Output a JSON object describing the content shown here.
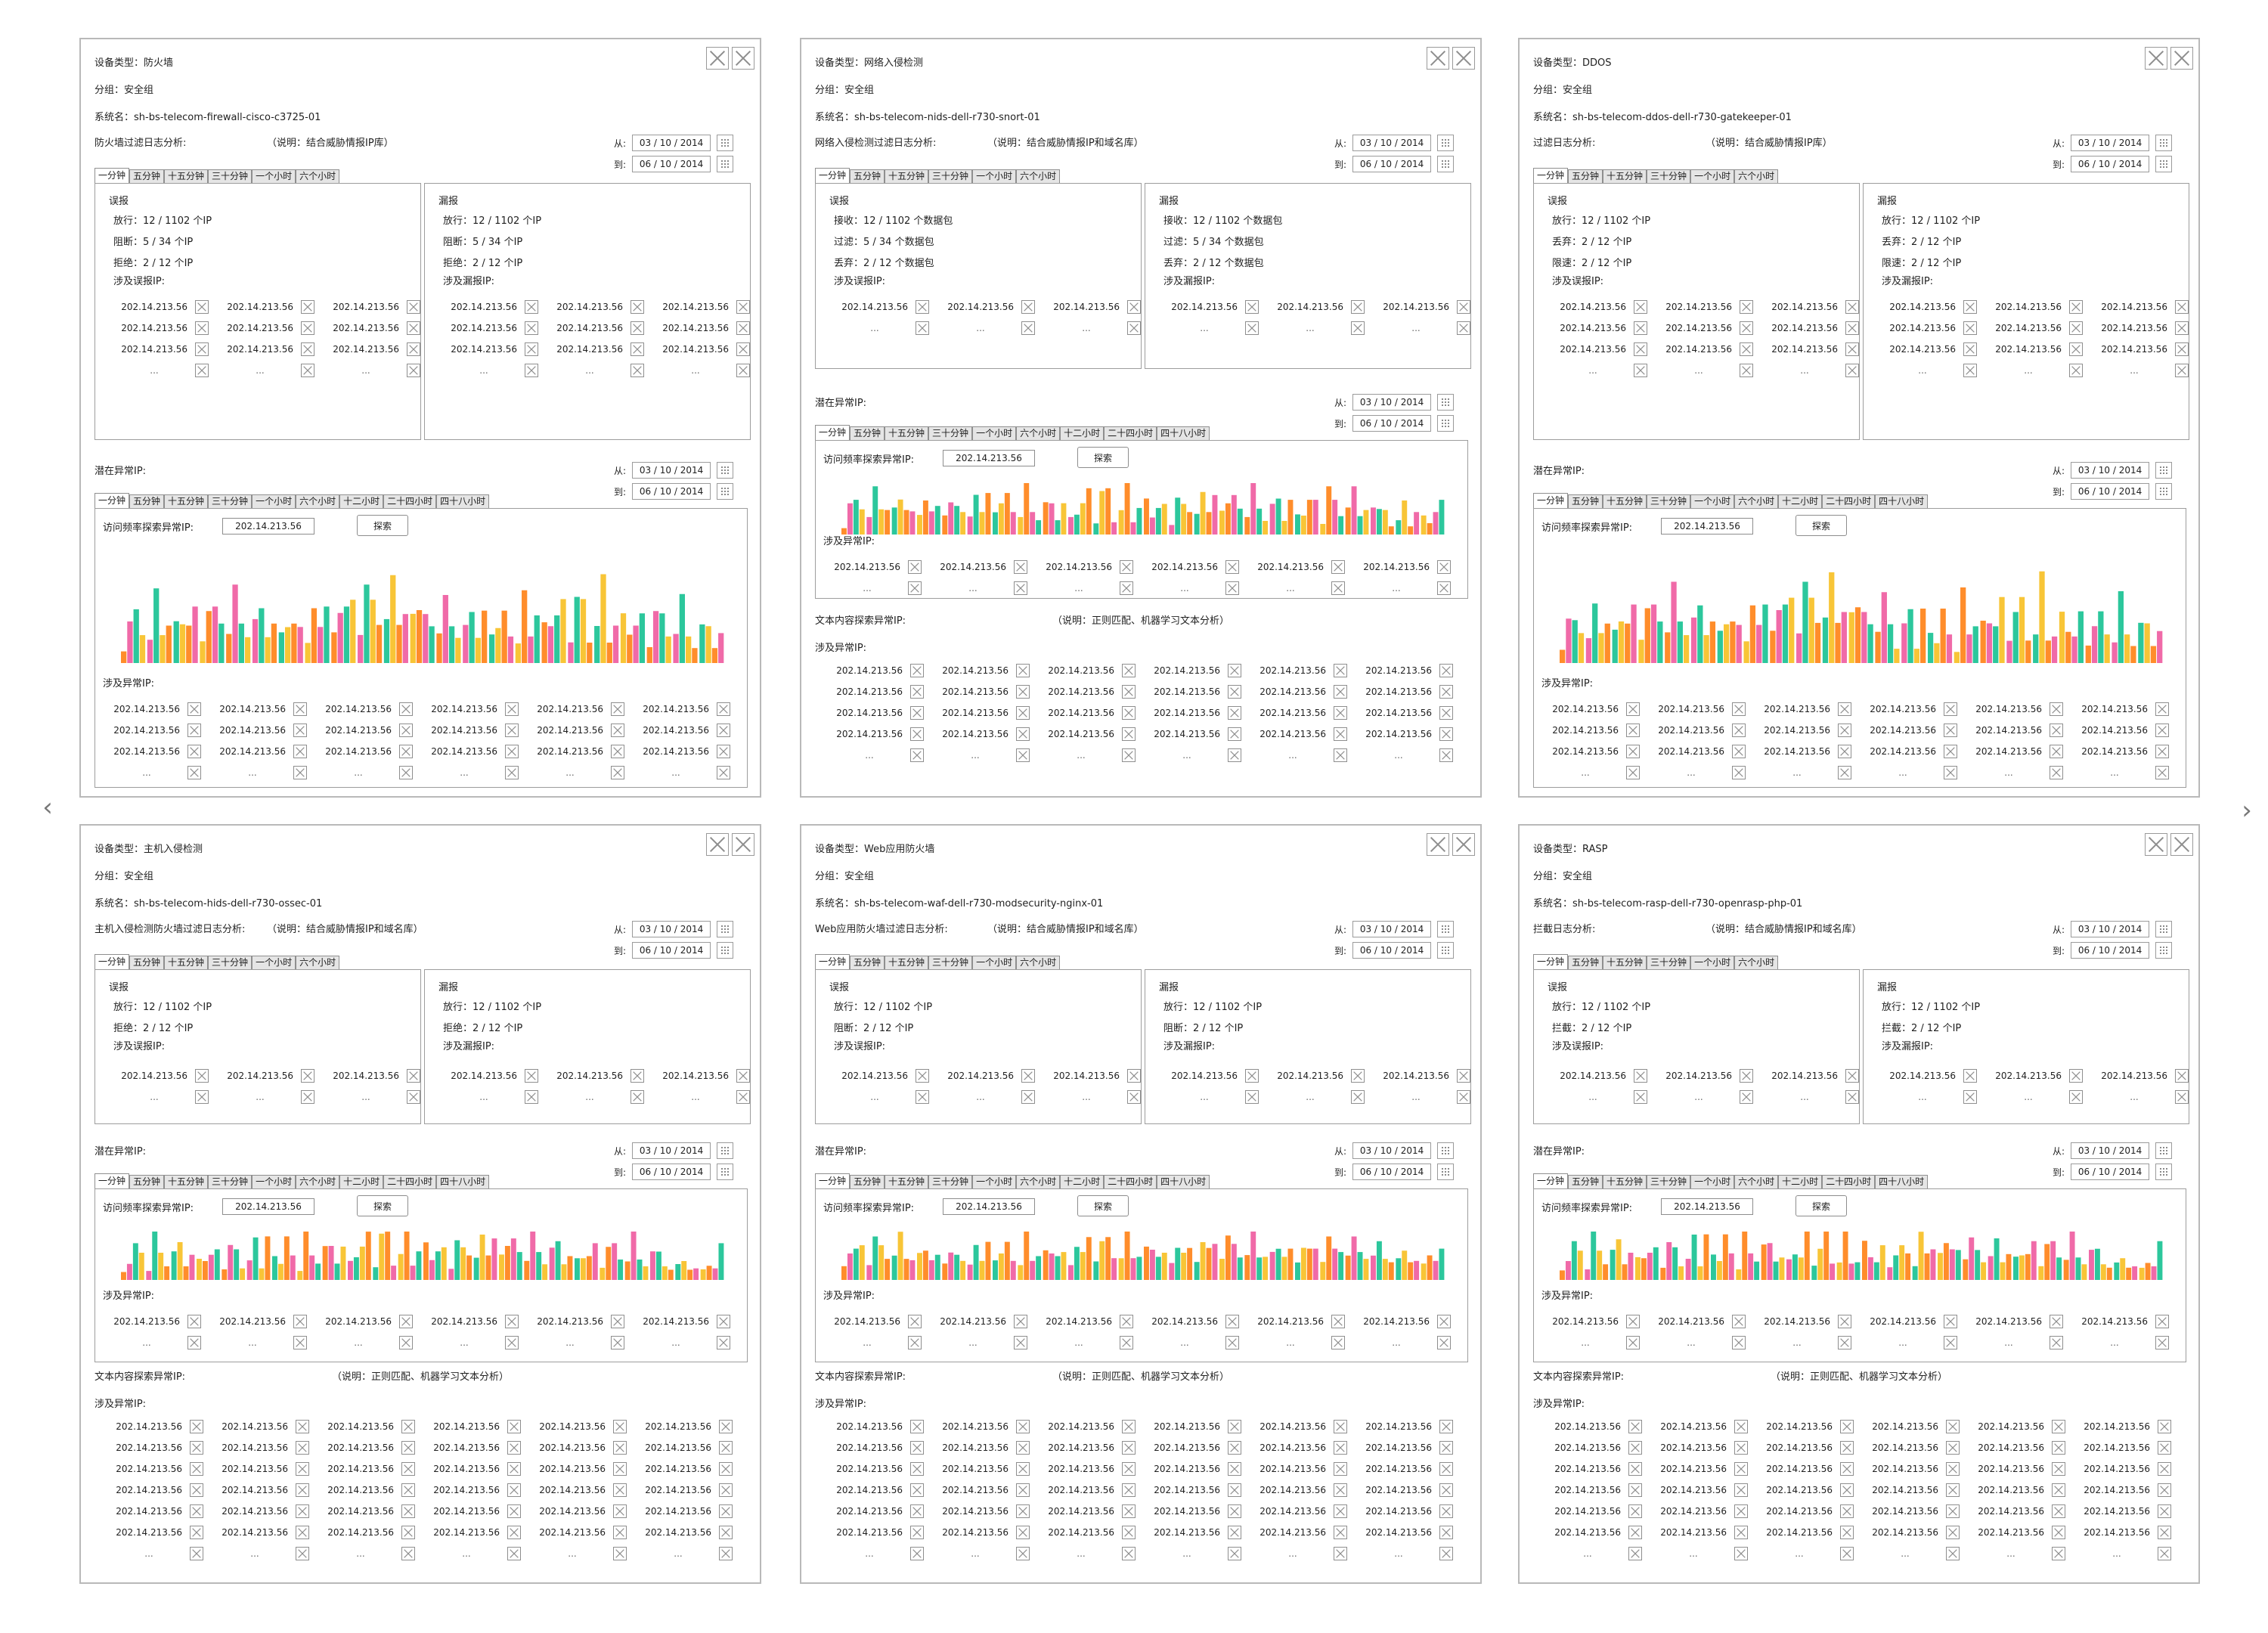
{
  "nav": {
    "prev": "‹",
    "next": "›"
  },
  "colors": {
    "pink": "#f06aa8",
    "teal": "#2cc79c",
    "yellow": "#f8c537",
    "orange": "#ff8d2b",
    "border": "#b9b9b9",
    "line": "#8f8f8f"
  },
  "common": {
    "from_label": "从:",
    "to_label": "到:",
    "date_from": "03 / 10 / 2014",
    "date_to": "06 / 10 / 2014",
    "short_tabs": [
      "一分钟",
      "五分钟",
      "十五分钟",
      "三十分钟",
      "一个小时",
      "六个小时"
    ],
    "long_tabs": [
      "一分钟",
      "五分钟",
      "十五分钟",
      "三十分钟",
      "一个小时",
      "六个小时",
      "十二小时",
      "二十四小时",
      "四十八小时"
    ],
    "potential_ip_label": "潜在异常IP:",
    "frequency_label": "访问频率探索异常IP:",
    "search_value": "202.14.213.56",
    "search_button": "探索",
    "involved_ip_label": "涉及异常IP:",
    "text_content_label": "文本内容探索异常IP:",
    "text_content_note": "（说明：正则匹配、机器学习文本分析）",
    "ip": "202.14.213.56",
    "ellipsis": "...",
    "misreport": "误报",
    "missreport": "漏报",
    "involved_misreport": "涉及误报IP:",
    "involved_missreport": "涉及漏报IP:"
  },
  "panels": [
    {
      "id": "firewall",
      "device": "设备类型：防火墙",
      "group": "分组：安全组",
      "system": "系统名：sh-bs-telecom-firewall-cisco-c3725-01",
      "analysis": "防火墙过滤日志分析:",
      "note": "（说明：结合威胁情报IP库）",
      "left_stats": [
        "放行：12 / 1102 个IP",
        "阻断：5 / 34 个IP",
        "拒绝：2 / 12 个IP"
      ],
      "right_stats": [
        "放行：12 / 1102 个IP",
        "阻断：5 / 34 个IP",
        "拒绝：2 / 12 个IP"
      ]
    },
    {
      "id": "nids",
      "device": "设备类型：网络入侵检测",
      "group": "分组：安全组",
      "system": "系统名：sh-bs-telecom-nids-dell-r730-snort-01",
      "analysis": "网络入侵检测过滤日志分析:",
      "note": "（说明：结合威胁情报IP和域名库）",
      "left_stats": [
        "接收：12 / 1102 个数据包",
        "过滤：5 / 34 个数据包",
        "丢弃：2 / 12 个数据包"
      ],
      "right_stats": [
        "接收：12 / 1102 个数据包",
        "过滤：5 / 34 个数据包",
        "丢弃：2 / 12 个数据包"
      ]
    },
    {
      "id": "ddos",
      "device": "设备类型：DDOS",
      "group": "分组：安全组",
      "system": "系统名：sh-bs-telecom-ddos-dell-r730-gatekeeper-01",
      "analysis": "过滤日志分析:",
      "note": "（说明：结合威胁情报IP库）",
      "left_stats": [
        "放行：12 / 1102 个IP",
        "丢弃：2 / 12 个IP",
        "限速：2 / 12 个IP"
      ],
      "right_stats": [
        "放行：12 / 1102 个IP",
        "丢弃：2 / 12 个IP",
        "限速：2 / 12 个IP"
      ]
    },
    {
      "id": "hids",
      "device": "设备类型：主机入侵检测",
      "group": "分组：安全组",
      "system": "系统名：sh-bs-telecom-hids-dell-r730-ossec-01",
      "analysis": "主机入侵检测防火墙过滤日志分析:",
      "note": "（说明：结合威胁情报IP和域名库）",
      "left_stats": [
        "放行：12 / 1102 个IP",
        "拒绝：2 / 12 个IP"
      ],
      "right_stats": [
        "放行：12 / 1102 个IP",
        "拒绝：2 / 12 个IP"
      ]
    },
    {
      "id": "waf",
      "device": "设备类型：Web应用防火墙",
      "group": "分组：安全组",
      "system": "系统名：sh-bs-telecom-waf-dell-r730-modsecurity-nginx-01",
      "analysis": "Web应用防火墙过滤日志分析:",
      "note": "（说明：结合威胁情报IP和域名库）",
      "left_stats": [
        "放行：12 / 1102 个IP",
        "阻断：2 / 12 个IP"
      ],
      "right_stats": [
        "放行：12 / 1102 个IP",
        "阻断：2 / 12 个IP"
      ]
    },
    {
      "id": "rasp",
      "device": "设备类型：RASP",
      "group": "分组：安全组",
      "system": "系统名：sh-bs-telecom-rasp-dell-r730-openrasp-php-01",
      "analysis": "拦截日志分析:",
      "note": "（说明：结合威胁情报IP和域名库）",
      "left_stats": [
        "放行：12 / 1102 个IP",
        "拦截：2 / 12 个IP"
      ],
      "right_stats": [
        "放行：12 / 1102 个IP",
        "拦截：2 / 12 个IP"
      ]
    }
  ]
}
